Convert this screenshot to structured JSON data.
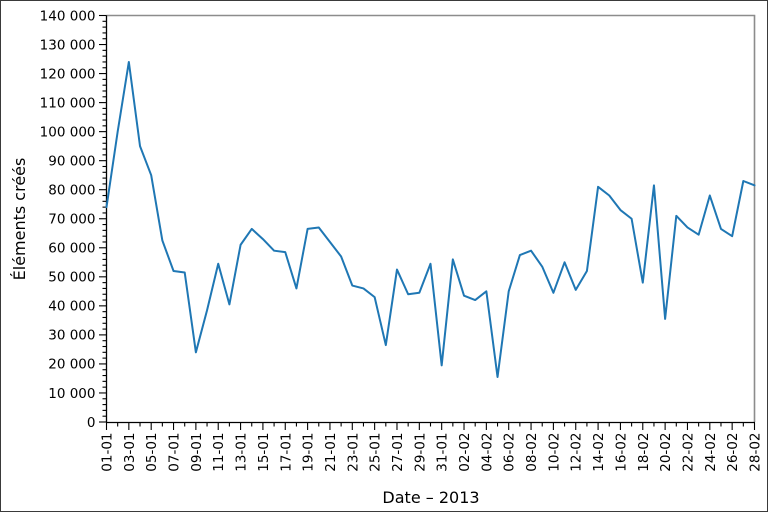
{
  "chart_data": {
    "type": "line",
    "xlabel": "Date – 2013",
    "ylabel": "Éléments créés",
    "x": [
      "01-01",
      "02-01",
      "03-01",
      "04-01",
      "05-01",
      "06-01",
      "07-01",
      "08-01",
      "09-01",
      "10-01",
      "11-01",
      "12-01",
      "13-01",
      "14-01",
      "15-01",
      "16-01",
      "17-01",
      "18-01",
      "19-01",
      "20-01",
      "21-01",
      "22-01",
      "23-01",
      "24-01",
      "25-01",
      "26-01",
      "27-01",
      "28-01",
      "29-01",
      "30-01",
      "31-01",
      "01-02",
      "02-02",
      "03-02",
      "04-02",
      "05-02",
      "06-02",
      "07-02",
      "08-02",
      "09-02",
      "10-02",
      "11-02",
      "12-02",
      "13-02",
      "14-02",
      "15-02",
      "16-02",
      "17-02",
      "18-02",
      "19-02",
      "20-02",
      "21-02",
      "22-02",
      "23-02",
      "24-02",
      "25-02",
      "26-02",
      "27-02",
      "28-02"
    ],
    "values": [
      74000,
      100000,
      124000,
      95000,
      85000,
      62500,
      52000,
      51500,
      24000,
      38500,
      54500,
      40500,
      61000,
      66500,
      63000,
      59000,
      58500,
      46000,
      66500,
      67000,
      62000,
      57000,
      47000,
      46000,
      43000,
      26500,
      52500,
      44000,
      44500,
      54500,
      19500,
      56000,
      43500,
      42000,
      45000,
      15500,
      45000,
      57500,
      59000,
      53500,
      44500,
      55000,
      45500,
      52000,
      81000,
      78000,
      73000,
      70000,
      48000,
      81500,
      35500,
      71000,
      67000,
      64500,
      78000,
      66500,
      64000,
      83000,
      81500
    ],
    "x_tick_labels": [
      "01-01",
      "03-01",
      "05-01",
      "07-01",
      "09-01",
      "11-01",
      "13-01",
      "15-01",
      "17-01",
      "19-01",
      "21-01",
      "23-01",
      "25-01",
      "27-01",
      "29-01",
      "31-01",
      "02-02",
      "04-02",
      "06-02",
      "08-02",
      "10-02",
      "12-02",
      "14-02",
      "16-02",
      "18-02",
      "20-02",
      "22-02",
      "24-02",
      "26-02",
      "28-02"
    ],
    "y_tick_labels": [
      "0",
      "10 000",
      "20 000",
      "30 000",
      "40 000",
      "50 000",
      "60 000",
      "70 000",
      "80 000",
      "90 000",
      "100 000",
      "110 000",
      "120 000",
      "130 000",
      "140 000"
    ],
    "ylim": [
      0,
      140000
    ],
    "y_tick_step": 10000,
    "y_minor_step": 2000,
    "x_minor_every_days": 1,
    "x_major_every_days": 2,
    "grid": false,
    "legend": "none",
    "colors": {
      "line": "#1f77b4",
      "axis": "#000000",
      "secondary_spines": "#8c8c8c",
      "tick_label_text": "#000000",
      "background": "#ffffff"
    }
  }
}
